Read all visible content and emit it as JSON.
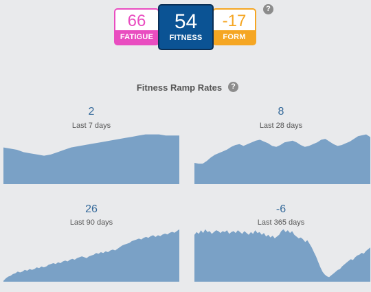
{
  "summary": {
    "fatigue": {
      "value": "66",
      "label": "FATIGUE",
      "color": "#e94dc0"
    },
    "fitness": {
      "value": "54",
      "label": "FITNESS",
      "color": "#0b5394"
    },
    "form": {
      "value": "-17",
      "label": "FORM",
      "color": "#f5a623"
    },
    "help_icon": "?"
  },
  "ramp": {
    "title": "Fitness Ramp Rates",
    "help_icon": "?",
    "fill_color": "#7aa1c6",
    "panels": [
      {
        "value": "2",
        "period": "Last 7 days"
      },
      {
        "value": "8",
        "period": "Last 28 days"
      },
      {
        "value": "26",
        "period": "Last 90 days"
      },
      {
        "value": "-6",
        "period": "Last 365 days"
      }
    ]
  },
  "chart_data": [
    {
      "type": "area",
      "title": "Last 7 days",
      "values": [
        31,
        30,
        29,
        27,
        26,
        25,
        24,
        25,
        27,
        29,
        31,
        32,
        33,
        34,
        35,
        36,
        37,
        38,
        39,
        40,
        41,
        42,
        42,
        42,
        41,
        41,
        41
      ]
    },
    {
      "type": "area",
      "title": "Last 28 days",
      "values": [
        24,
        23,
        23,
        26,
        30,
        33,
        35,
        37,
        39,
        42,
        44,
        45,
        43,
        45,
        47,
        49,
        50,
        48,
        46,
        43,
        42,
        44,
        47,
        48,
        49,
        47,
        44,
        42,
        43,
        45,
        47,
        50,
        51,
        48,
        45,
        43,
        44,
        46,
        48,
        51,
        54,
        55,
        56,
        53
      ]
    },
    {
      "type": "area",
      "title": "Last 90 days",
      "values": [
        1,
        4,
        6,
        7,
        9,
        10,
        12,
        11,
        12,
        14,
        13,
        15,
        14,
        15,
        17,
        16,
        18,
        17,
        18,
        20,
        21,
        22,
        21,
        23,
        22,
        24,
        25,
        24,
        26,
        27,
        26,
        28,
        29,
        30,
        29,
        28,
        30,
        31,
        32,
        34,
        33,
        35,
        34,
        36,
        35,
        37,
        38,
        37,
        39,
        41,
        43,
        44,
        45,
        46,
        48,
        49,
        50,
        51,
        50,
        52,
        53,
        52,
        54,
        55,
        53,
        55,
        54,
        56,
        57,
        56,
        58,
        59,
        58,
        60,
        62
      ]
    },
    {
      "type": "area",
      "title": "Last 365 days",
      "values": [
        52,
        55,
        53,
        57,
        54,
        58,
        55,
        56,
        53,
        55,
        57,
        56,
        54,
        56,
        55,
        57,
        53,
        55,
        56,
        54,
        57,
        55,
        53,
        56,
        54,
        52,
        55,
        53,
        57,
        54,
        55,
        52,
        54,
        50,
        52,
        49,
        51,
        48,
        50,
        52,
        56,
        58,
        55,
        57,
        54,
        56,
        52,
        50,
        48,
        49,
        47,
        44,
        46,
        42,
        38,
        33,
        28,
        22,
        16,
        11,
        8,
        6,
        5,
        7,
        9,
        11,
        13,
        14,
        17,
        19,
        21,
        23,
        25,
        24,
        27,
        29,
        30,
        32,
        31,
        34,
        36,
        38
      ]
    }
  ]
}
